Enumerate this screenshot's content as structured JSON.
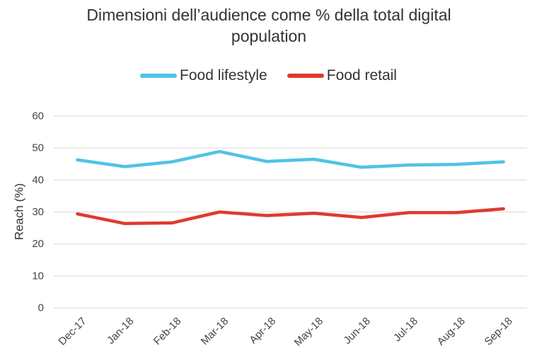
{
  "chart_data": {
    "type": "line",
    "title": "Dimensioni dell’audience come % della total digital population",
    "title_lines": [
      "Dimensioni dell’audience come % della total digital",
      "population"
    ],
    "xlabel": "",
    "ylabel": "Reach (%)",
    "ylim": [
      0,
      60
    ],
    "yticks": [
      "0",
      "10",
      "20",
      "30",
      "40",
      "50",
      "60"
    ],
    "categories": [
      "Dec-17",
      "Jan-18",
      "Feb-18",
      "Mar-18",
      "Apr-18",
      "May-18",
      "Jun-18",
      "Jul-18",
      "Aug-18",
      "Sep-18"
    ],
    "grid": true,
    "legend_position": "top",
    "series": [
      {
        "name": "Food lifestyle",
        "color": "#4fc3e6",
        "values": [
          46.3,
          44.2,
          45.7,
          48.9,
          45.8,
          46.5,
          44.0,
          44.7,
          44.9,
          45.7
        ]
      },
      {
        "name": "Food retail",
        "color": "#e03a2e",
        "values": [
          29.4,
          26.4,
          26.6,
          30.0,
          28.9,
          29.6,
          28.3,
          29.8,
          29.8,
          31.0
        ]
      }
    ]
  }
}
